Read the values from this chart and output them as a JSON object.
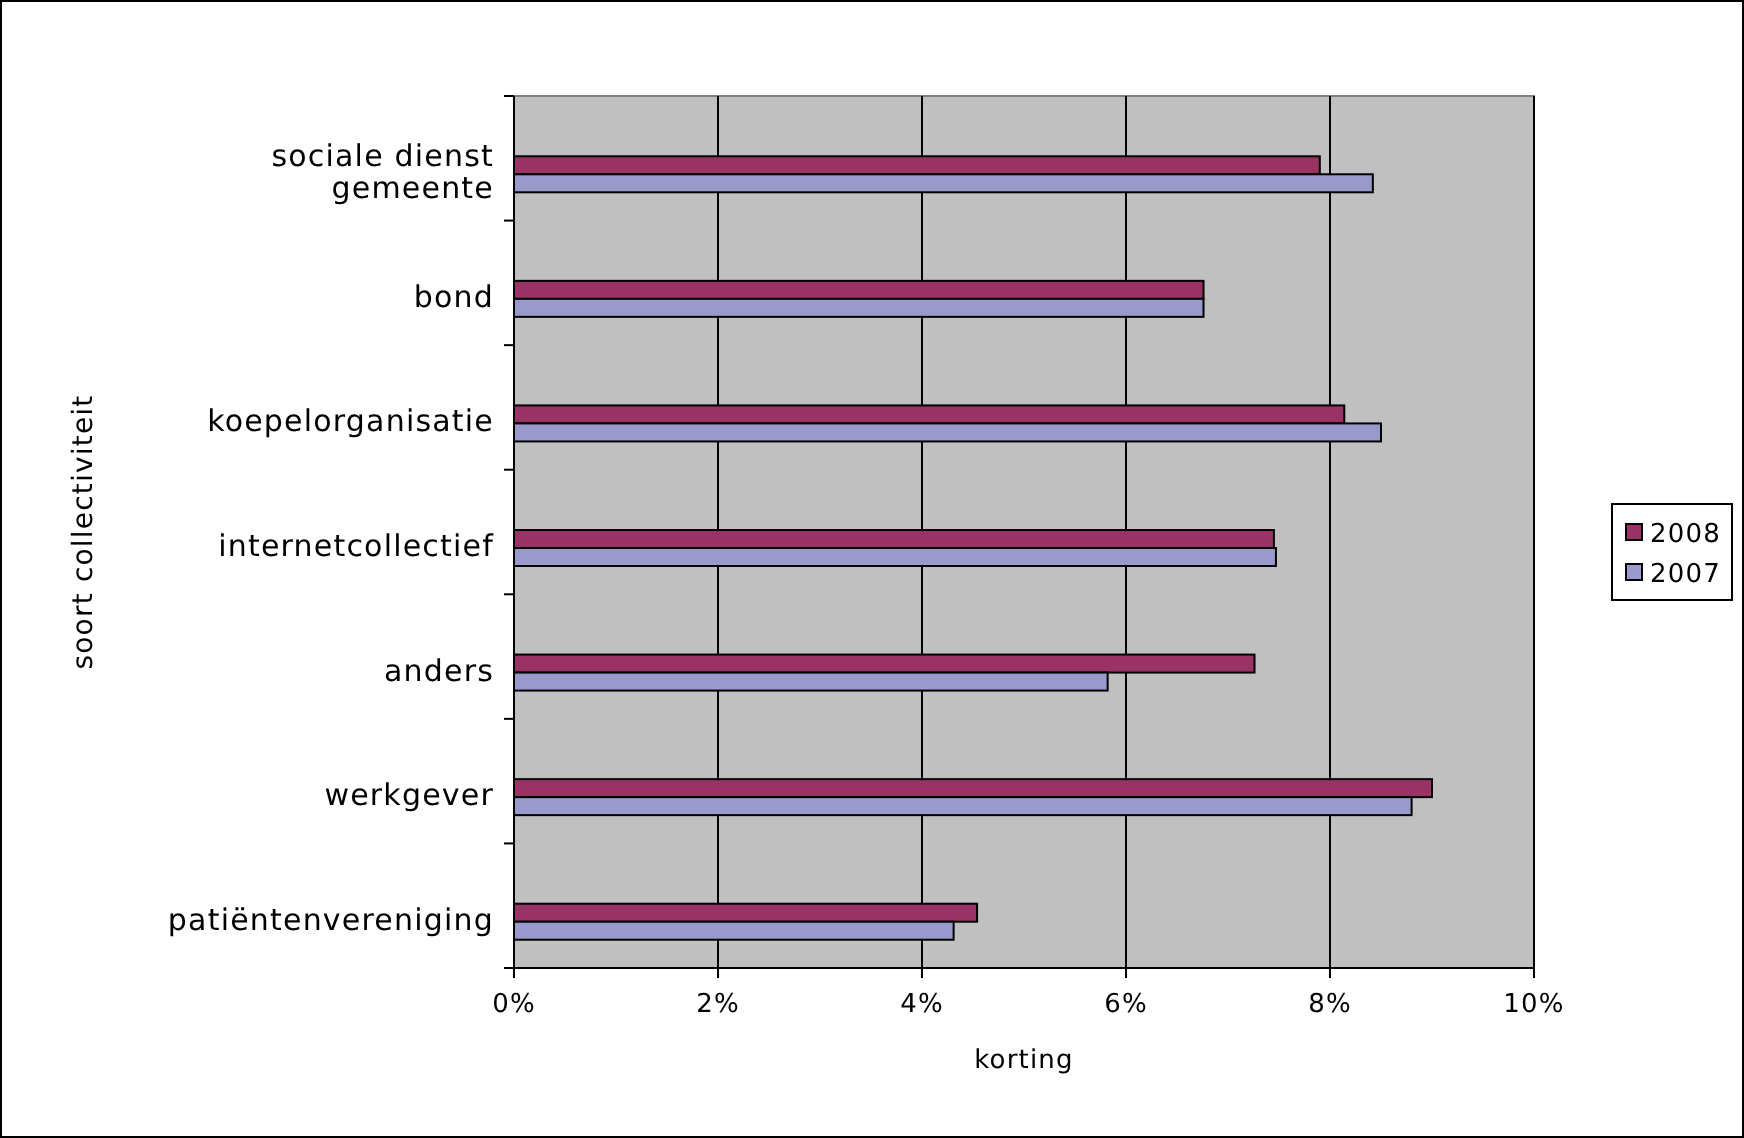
{
  "chart_data": {
    "type": "bar",
    "orientation": "horizontal",
    "xlabel": "korting",
    "ylabel": "soort collectiviteit",
    "categories": [
      "sociale dienst gemeente",
      "bond",
      "koepelorganisatie",
      "internetcollectief",
      "anders",
      "werkgever",
      "patiëntenvereniging"
    ],
    "series": [
      {
        "name": "2008",
        "color": "#993366",
        "values": [
          7.9,
          6.76,
          8.14,
          7.45,
          7.26,
          9.0,
          4.54
        ]
      },
      {
        "name": "2007",
        "color": "#9999cc",
        "values": [
          8.42,
          6.76,
          8.5,
          7.47,
          5.82,
          8.8,
          4.31
        ]
      }
    ],
    "xlim": [
      0,
      10
    ],
    "xticks": [
      {
        "value": 0,
        "label": "0%"
      },
      {
        "value": 2,
        "label": "2%"
      },
      {
        "value": 4,
        "label": "4%"
      },
      {
        "value": 6,
        "label": "6%"
      },
      {
        "value": 8,
        "label": "8%"
      },
      {
        "value": 10,
        "label": "10%"
      }
    ],
    "grid": "x",
    "legend": "right"
  }
}
